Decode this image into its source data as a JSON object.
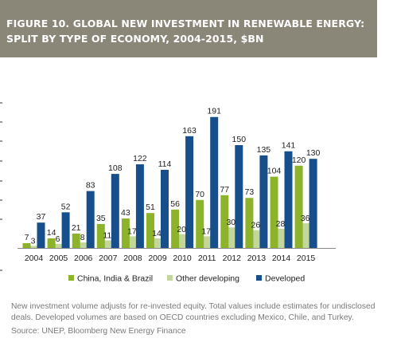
{
  "header": {
    "title_line1": "FIGURE 10. GLOBAL NEW INVESTMENT IN RENEWABLE ENERGY:",
    "title_line2": "SPLIT BY TYPE OF ECONOMY, 2004-2015, $BN"
  },
  "colors": {
    "header_bg": "#8a8678",
    "china": "#8db32b",
    "other": "#c3d69b",
    "developed": "#174f8c"
  },
  "chart_data": {
    "type": "bar",
    "title": "FIGURE 10. GLOBAL NEW INVESTMENT IN RENEWABLE ENERGY: SPLIT BY TYPE OF ECONOMY, 2004-2015, $BN",
    "categories": [
      "2004",
      "2005",
      "2006",
      "2007",
      "2008",
      "2009",
      "2010",
      "2011",
      "2012",
      "2013",
      "2014",
      "2015"
    ],
    "series": [
      {
        "name": "China, India & Brazil",
        "values": [
          7,
          14,
          21,
          35,
          43,
          51,
          56,
          70,
          77,
          73,
          104,
          120
        ]
      },
      {
        "name": "Other developing",
        "values": [
          3,
          6,
          8,
          11,
          17,
          14,
          20,
          17,
          30,
          26,
          28,
          36
        ]
      },
      {
        "name": "Developed",
        "values": [
          37,
          52,
          83,
          108,
          122,
          114,
          163,
          191,
          150,
          135,
          141,
          130
        ]
      }
    ],
    "ylim": [
      0,
      200
    ],
    "grid": false,
    "legend": "bottom"
  },
  "notes": {
    "text": "New investment volume adjusts for re-invested equity.  Total values include estimates for undisclosed deals. Developed volumes are based on OECD countries excluding Mexico, Chile, and Turkey.",
    "source": "Source: UNEP, Bloomberg New Energy Finance"
  }
}
